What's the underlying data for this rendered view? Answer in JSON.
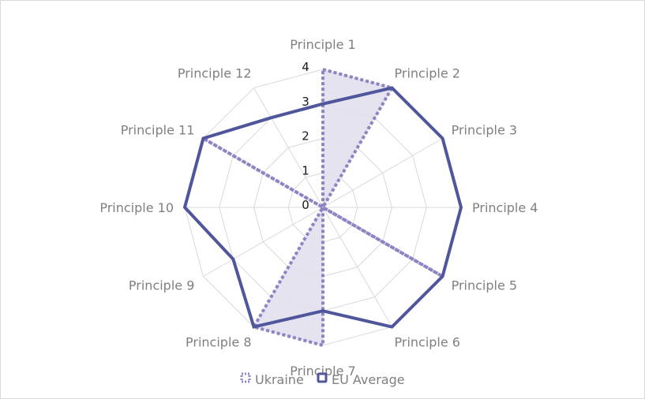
{
  "chart_data": {
    "type": "radar",
    "categories": [
      "Principle 1",
      "Principle 2",
      "Principle 3",
      "Principle 4",
      "Principle 5",
      "Principle 6",
      "Principle 7",
      "Principle 8",
      "Principle 9",
      "Principle 10",
      "Principle 11",
      "Principle 12"
    ],
    "series": [
      {
        "name": "Ukraine",
        "values": [
          4,
          4,
          0,
          0,
          4,
          0,
          4,
          4,
          0,
          0,
          4,
          0
        ],
        "color": "#8e84c4",
        "fill": "#e3e0ef",
        "line_style": "dotted"
      },
      {
        "name": "EU Average",
        "values": [
          3.0,
          4.0,
          4.0,
          4.0,
          4.0,
          4.0,
          3.0,
          4.0,
          3.0,
          4.0,
          4.0,
          3.0
        ],
        "color": "#4f569b",
        "line_style": "solid"
      }
    ],
    "r_ticks": [
      "0",
      "1",
      "2",
      "3",
      "4"
    ],
    "rlim": [
      0,
      4
    ],
    "grid": true,
    "legend_position": "bottom"
  }
}
